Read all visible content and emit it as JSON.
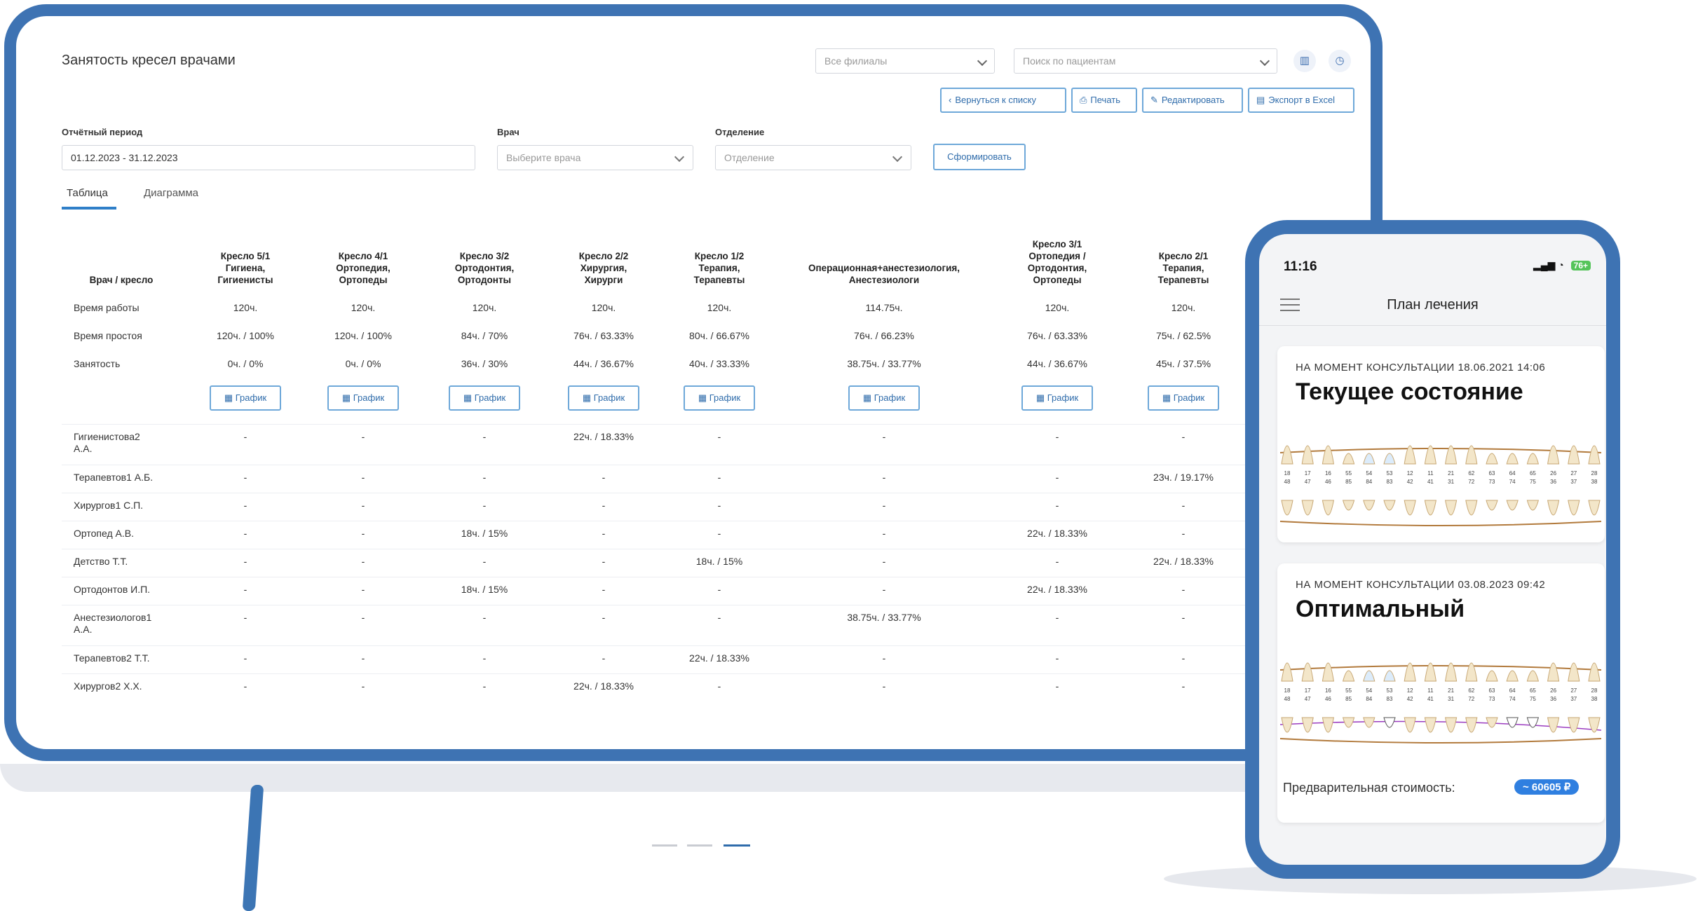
{
  "app": {
    "title": "Занятость кресел врачами",
    "branch_select": "Все филиалы",
    "patient_search_placeholder": "Поиск по пациентам"
  },
  "actions": {
    "back": "Вернуться к списку",
    "print": "Печать",
    "edit": "Редактировать",
    "export": "Экспорт в Excel"
  },
  "filters": {
    "period_label": "Отчётный период",
    "period_value": "01.12.2023 - 31.12.2023",
    "doctor_label": "Врач",
    "doctor_placeholder": "Выберите врача",
    "department_label": "Отделение",
    "department_placeholder": "Отделение",
    "submit": "Сформировать"
  },
  "tabs": [
    "Таблица",
    "Диаграмма"
  ],
  "table": {
    "corner": "Врач / кресло",
    "columns": [
      "Кресло 5/1\nГигиена,\nГигиенисты",
      "Кресло 4/1\nОртопедия,\nОртопеды",
      "Кресло 3/2\nОртодонтия,\nОртодонты",
      "Кресло 2/2\nХирургия,\nХирурги",
      "Кресло 1/2\nТерапия,\nТерапевты",
      "Операционная+анестезиология,\nАнестезиологи",
      "Кресло 3/1\nОртопедия /\nОртодонтия,\nОртопеды",
      "Кресло 2/1\nТерапия,\nТерапевты"
    ],
    "summary_rows": [
      {
        "label": "Время работы",
        "cells": [
          "120ч.",
          "120ч.",
          "120ч.",
          "120ч.",
          "120ч.",
          "114.75ч.",
          "120ч.",
          "120ч."
        ]
      },
      {
        "label": "Время простоя",
        "cells": [
          "120ч. / 100%",
          "120ч. / 100%",
          "84ч. / 70%",
          "76ч. / 63.33%",
          "80ч. / 66.67%",
          "76ч. / 66.23%",
          "76ч. / 63.33%",
          "75ч. / 62.5%"
        ]
      },
      {
        "label": "Занятость",
        "cells": [
          "0ч. / 0%",
          "0ч. / 0%",
          "36ч. / 30%",
          "44ч. / 36.67%",
          "40ч. / 33.33%",
          "38.75ч. / 33.77%",
          "44ч. / 36.67%",
          "45ч. / 37.5%"
        ]
      }
    ],
    "chart_button": "График",
    "doctor_rows": [
      {
        "label": "Гигиенистова2\nА.А.",
        "cells": [
          "-",
          "-",
          "-",
          "22ч. / 18.33%",
          "-",
          "-",
          "-",
          "-"
        ]
      },
      {
        "label": "Терапевтов1 А.Б.",
        "cells": [
          "-",
          "-",
          "-",
          "-",
          "-",
          "-",
          "-",
          "23ч. / 19.17%"
        ]
      },
      {
        "label": "Хирургов1 С.П.",
        "cells": [
          "-",
          "-",
          "-",
          "-",
          "-",
          "-",
          "-",
          "-"
        ]
      },
      {
        "label": "Ортопед А.В.",
        "cells": [
          "-",
          "-",
          "18ч. / 15%",
          "-",
          "-",
          "-",
          "22ч. / 18.33%",
          "-"
        ]
      },
      {
        "label": "Детство Т.Т.",
        "cells": [
          "-",
          "-",
          "-",
          "-",
          "18ч. / 15%",
          "-",
          "-",
          "22ч. / 18.33%"
        ]
      },
      {
        "label": "Ортодонтов И.П.",
        "cells": [
          "-",
          "-",
          "18ч. / 15%",
          "-",
          "-",
          "-",
          "22ч. / 18.33%",
          "-"
        ]
      },
      {
        "label": "Анестезиологов1\nА.А.",
        "cells": [
          "-",
          "-",
          "-",
          "-",
          "-",
          "38.75ч. / 33.77%",
          "-",
          "-"
        ]
      },
      {
        "label": "Терапевтов2 Т.Т.",
        "cells": [
          "-",
          "-",
          "-",
          "-",
          "22ч. / 18.33%",
          "-",
          "-",
          "-"
        ]
      },
      {
        "label": "Хирургов2 Х.Х.",
        "cells": [
          "-",
          "-",
          "-",
          "22ч. / 18.33%",
          "-",
          "-",
          "-",
          "-"
        ]
      }
    ]
  },
  "phone": {
    "time": "11:16",
    "battery": "76+",
    "title": "План лечения",
    "cards": [
      {
        "meta": "НА МОМЕНТ КОНСУЛЬТАЦИИ 18.06.2021 14:06",
        "title": "Текущее состояние"
      },
      {
        "meta": "НА МОМЕНТ КОНСУЛЬТАЦИИ 03.08.2023 09:42",
        "title": "Оптимальный"
      }
    ],
    "tooth_numbers_upper": [
      "18",
      "17",
      "16",
      "55",
      "54",
      "53",
      "12",
      "11",
      "21",
      "62",
      "63",
      "64",
      "65",
      "26",
      "27",
      "28"
    ],
    "tooth_numbers_lower": [
      "48",
      "47",
      "46",
      "85",
      "84",
      "83",
      "42",
      "41",
      "31",
      "72",
      "73",
      "74",
      "75",
      "36",
      "37",
      "38"
    ],
    "price_label": "Предварительная стоимость:",
    "price_value": "~ 60605 ₽"
  },
  "colors": {
    "frame": "#3e73b3",
    "accent": "#2f7fc8",
    "button_border": "#6ea8d9"
  }
}
